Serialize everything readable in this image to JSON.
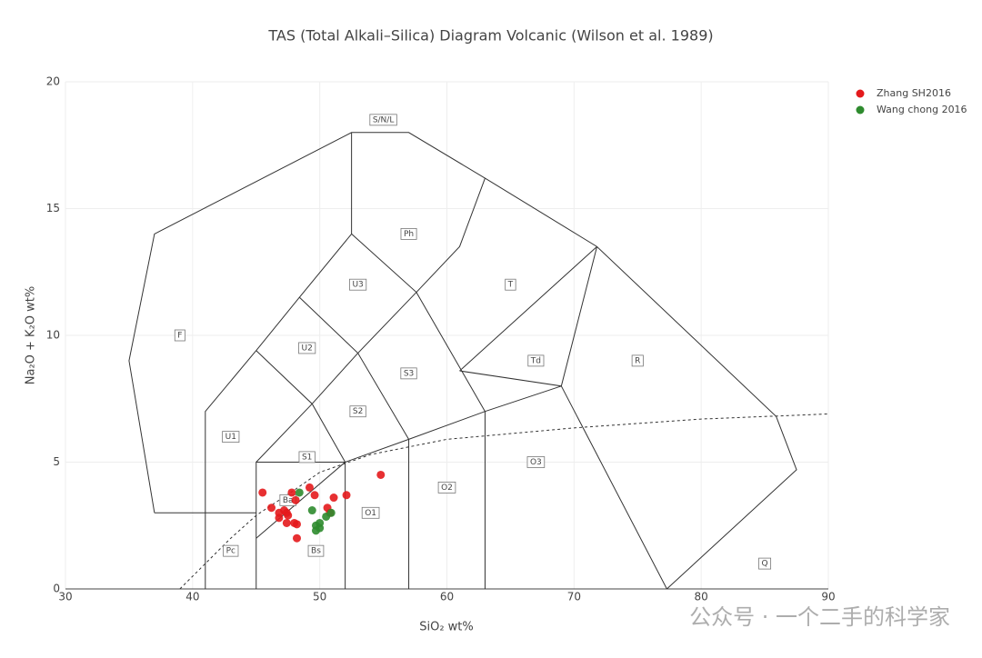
{
  "chart_data": {
    "type": "scatter",
    "title": "TAS (Total Alkali–Silica) Diagram Volcanic (Wilson et al. 1989)",
    "x_label": "SiO₂ wt%",
    "y_label": "Na₂O + K₂O wt%",
    "xlim": [
      30,
      90
    ],
    "xticks": [
      30,
      40,
      50,
      60,
      70,
      80,
      90
    ],
    "ylim": [
      0,
      20
    ],
    "yticks": [
      0,
      5,
      10,
      15,
      20
    ],
    "grid": true,
    "legend": "top-right",
    "field_labels": [
      "F",
      "U1",
      "U2",
      "U3",
      "Ph",
      "S1",
      "S2",
      "S3",
      "T",
      "Td",
      "R",
      "Ba",
      "Pc",
      "Bs",
      "O1",
      "O2",
      "O3",
      "Q",
      "S/N/L"
    ],
    "series": [
      {
        "name": "Zhang SH2016",
        "color": "#e41a1c",
        "x": [
          45.5,
          46.2,
          46.8,
          46.8,
          47.2,
          47.4,
          47.5,
          47.8,
          48.0,
          48.2,
          48.1,
          48.2,
          49.2,
          49.6,
          50.6,
          50.8,
          51.1,
          52.1,
          54.8,
          47.4
        ],
        "values": [
          3.8,
          3.2,
          3.0,
          2.8,
          3.1,
          2.6,
          2.9,
          3.8,
          2.6,
          2.55,
          3.5,
          2.0,
          4.0,
          3.7,
          3.2,
          3.0,
          3.6,
          3.7,
          4.5,
          3.0
        ]
      },
      {
        "name": "Wang chong 2016",
        "color": "#2e8b2e",
        "x": [
          48.4,
          49.4,
          49.7,
          49.7,
          50.0,
          50.0,
          50.5,
          50.9
        ],
        "values": [
          3.8,
          3.1,
          2.5,
          2.3,
          2.4,
          2.6,
          2.85,
          3.0
        ]
      }
    ],
    "watermark": "公众号 · 一个二手的科学家"
  }
}
